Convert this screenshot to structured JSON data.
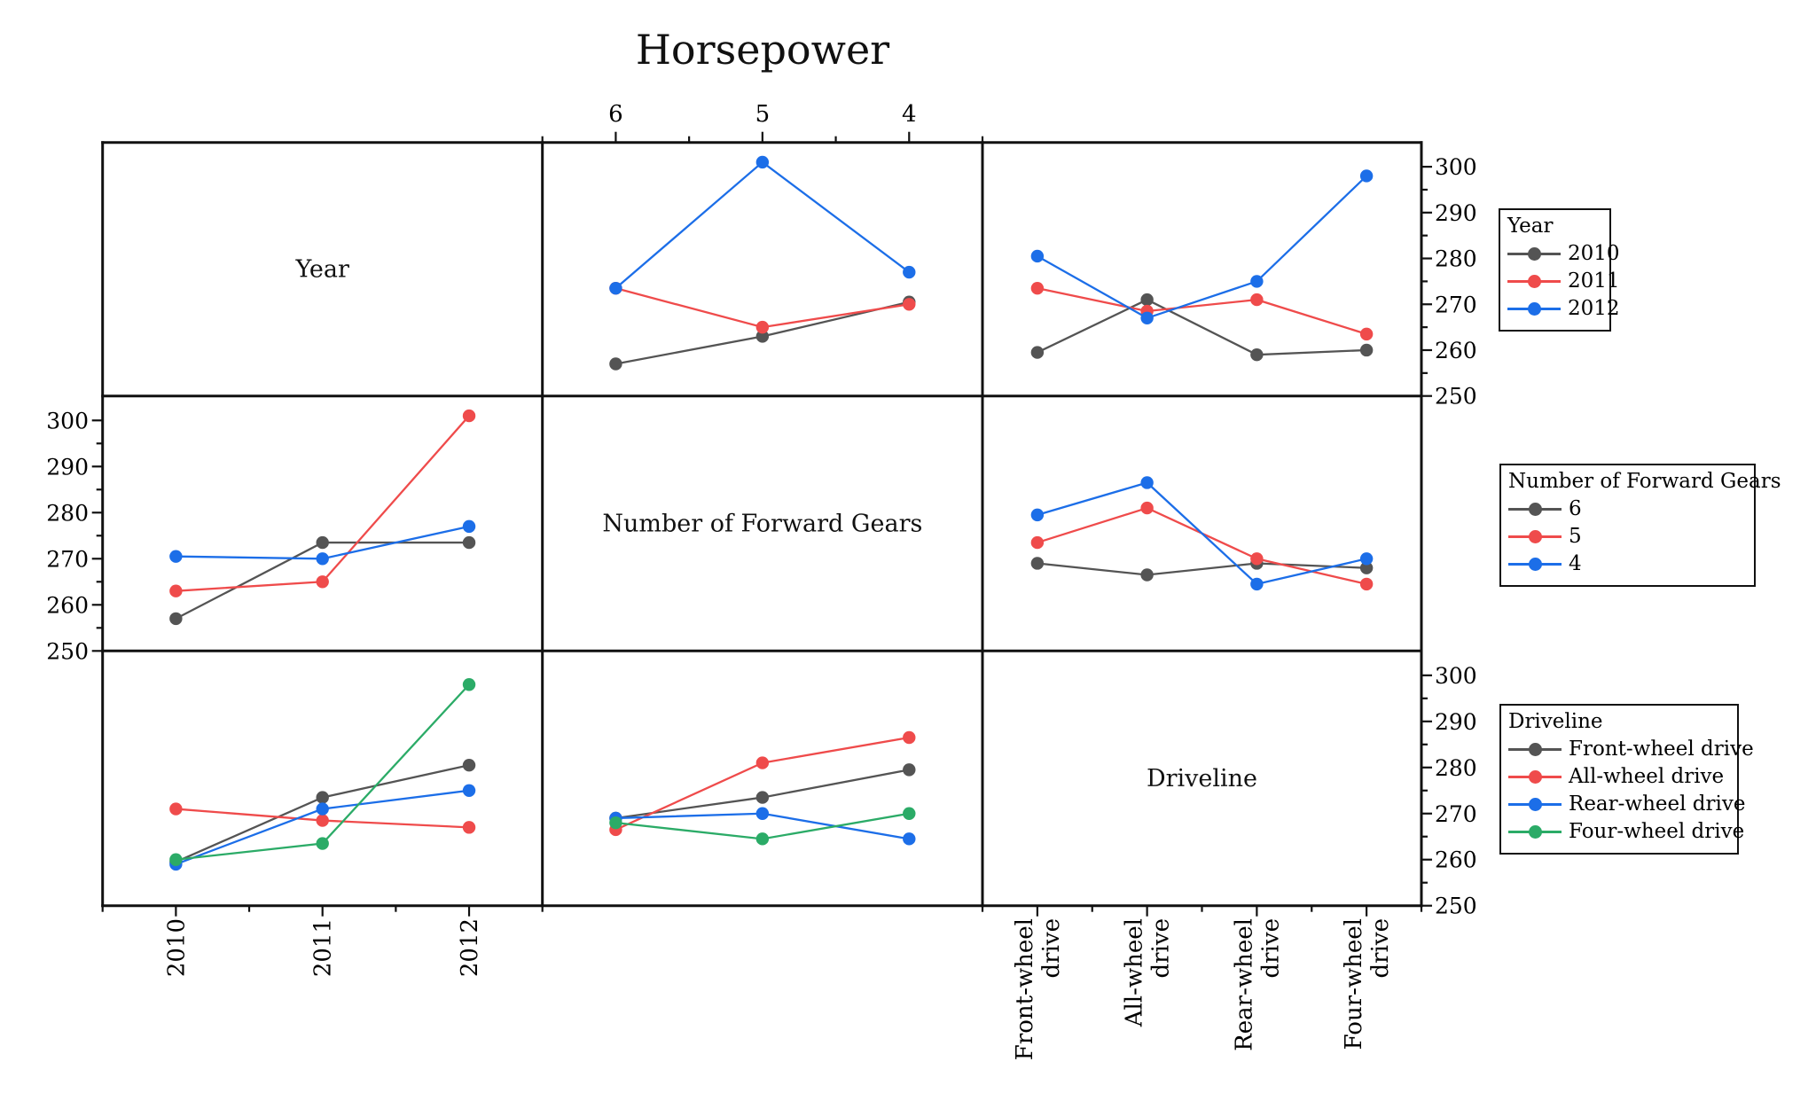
{
  "title": "Horsepower",
  "palette": {
    "gray": "#545454",
    "red": "#EF4B4B",
    "blue": "#1C6EE8",
    "green": "#2BAB67",
    "axis": "#111111"
  },
  "chart_data": {
    "type": "line",
    "title": "Horsepower",
    "layout_hint": "3x3 scatterplot-matrix of interaction line plots; diagonal cells show factor names; value axis 250-300 (ticks every 10, minor every 5); legends at right",
    "value_axis": {
      "major_ticks": [
        300,
        290,
        280,
        270,
        260,
        250
      ],
      "minor_ticks": [
        295,
        285,
        275,
        265,
        255
      ],
      "range": [
        250,
        305.3
      ]
    },
    "factors": {
      "year": {
        "label": "Year",
        "categories": [
          "2010",
          "2011",
          "2012"
        ]
      },
      "gears": {
        "label": "Number of Forward Gears",
        "categories": [
          "6",
          "5",
          "4"
        ]
      },
      "driveline": {
        "label": "Driveline",
        "categories": [
          "Front-wheel drive",
          "All-wheel drive",
          "Rear-wheel drive",
          "Four-wheel drive"
        ],
        "categories_two_line": [
          [
            "Front-wheel",
            "drive"
          ],
          [
            "All-wheel",
            "drive"
          ],
          [
            "Rear-wheel",
            "drive"
          ],
          [
            "Four-wheel",
            "drive"
          ]
        ]
      }
    },
    "panels": [
      {
        "row": 0,
        "col": 0,
        "type": "label",
        "text": "Year"
      },
      {
        "row": 0,
        "col": 1,
        "type": "plot",
        "x_factor": "gears",
        "series": [
          {
            "name": "2010",
            "color": "#545454",
            "values": [
              257,
              263,
              270.5
            ]
          },
          {
            "name": "2011",
            "color": "#EF4B4B",
            "values": [
              273.5,
              265,
              270
            ]
          },
          {
            "name": "2012",
            "color": "#1C6EE8",
            "values": [
              273.5,
              301,
              277
            ]
          }
        ]
      },
      {
        "row": 0,
        "col": 2,
        "type": "plot",
        "x_factor": "driveline",
        "series": [
          {
            "name": "2010",
            "color": "#545454",
            "values": [
              259.5,
              271,
              259,
              260
            ]
          },
          {
            "name": "2011",
            "color": "#EF4B4B",
            "values": [
              273.5,
              268.5,
              271,
              263.5
            ]
          },
          {
            "name": "2012",
            "color": "#1C6EE8",
            "values": [
              280.5,
              267,
              275,
              298
            ]
          }
        ]
      },
      {
        "row": 1,
        "col": 0,
        "type": "plot",
        "x_factor": "year",
        "series": [
          {
            "name": "6",
            "color": "#545454",
            "values": [
              257,
              273.5,
              273.5
            ]
          },
          {
            "name": "5",
            "color": "#EF4B4B",
            "values": [
              263,
              265,
              301
            ]
          },
          {
            "name": "4",
            "color": "#1C6EE8",
            "values": [
              270.5,
              270,
              277
            ]
          }
        ]
      },
      {
        "row": 1,
        "col": 1,
        "type": "label",
        "text": "Number of Forward Gears"
      },
      {
        "row": 1,
        "col": 2,
        "type": "plot",
        "x_factor": "driveline",
        "series": [
          {
            "name": "6",
            "color": "#545454",
            "values": [
              269,
              266.5,
              269,
              268
            ]
          },
          {
            "name": "5",
            "color": "#EF4B4B",
            "values": [
              273.5,
              281,
              270,
              264.5
            ]
          },
          {
            "name": "4",
            "color": "#1C6EE8",
            "values": [
              279.5,
              286.5,
              264.5,
              270
            ]
          }
        ]
      },
      {
        "row": 2,
        "col": 0,
        "type": "plot",
        "x_factor": "year",
        "series": [
          {
            "name": "Front-wheel drive",
            "color": "#545454",
            "values": [
              259.5,
              273.5,
              280.5
            ]
          },
          {
            "name": "All-wheel drive",
            "color": "#EF4B4B",
            "values": [
              271,
              268.5,
              267
            ]
          },
          {
            "name": "Rear-wheel drive",
            "color": "#1C6EE8",
            "values": [
              259,
              271,
              275
            ]
          },
          {
            "name": "Four-wheel drive",
            "color": "#2BAB67",
            "values": [
              260,
              263.5,
              298
            ]
          }
        ]
      },
      {
        "row": 2,
        "col": 1,
        "type": "plot",
        "x_factor": "gears",
        "series": [
          {
            "name": "Front-wheel drive",
            "color": "#545454",
            "values": [
              269,
              273.5,
              279.5
            ]
          },
          {
            "name": "All-wheel drive",
            "color": "#EF4B4B",
            "values": [
              266.5,
              281,
              286.5
            ]
          },
          {
            "name": "Rear-wheel drive",
            "color": "#1C6EE8",
            "values": [
              269,
              270,
              264.5
            ]
          },
          {
            "name": "Four-wheel drive",
            "color": "#2BAB67",
            "values": [
              268,
              264.5,
              270
            ]
          }
        ]
      },
      {
        "row": 2,
        "col": 2,
        "type": "label",
        "text": "Driveline"
      }
    ],
    "axis_label_sets": {
      "top_col1": [
        "6",
        "5",
        "4"
      ],
      "bottom_col0": [
        "2010",
        "2011",
        "2012"
      ],
      "bottom_col2_two_line": [
        [
          "Front-wheel",
          "drive"
        ],
        [
          "All-wheel",
          "drive"
        ],
        [
          "Rear-wheel",
          "drive"
        ],
        [
          "Four-wheel",
          "drive"
        ]
      ],
      "left_row1": [
        "300",
        "290",
        "280",
        "270",
        "260",
        "250"
      ],
      "right_row0": [
        "300",
        "290",
        "280",
        "270",
        "260",
        "250"
      ],
      "right_row2": [
        "300",
        "290",
        "280",
        "270",
        "260",
        "250"
      ]
    },
    "legend_position": "right"
  },
  "legends": [
    {
      "id": "year",
      "title": "Year",
      "entries": [
        {
          "label": "2010",
          "color": "#545454"
        },
        {
          "label": "2011",
          "color": "#EF4B4B"
        },
        {
          "label": "2012",
          "color": "#1C6EE8"
        }
      ]
    },
    {
      "id": "gears",
      "title": "Number of Forward Gears",
      "entries": [
        {
          "label": "6",
          "color": "#545454"
        },
        {
          "label": "5",
          "color": "#EF4B4B"
        },
        {
          "label": "4",
          "color": "#1C6EE8"
        }
      ]
    },
    {
      "id": "driveline",
      "title": "Driveline",
      "entries": [
        {
          "label": "Front-wheel drive",
          "color": "#545454"
        },
        {
          "label": "All-wheel drive",
          "color": "#EF4B4B"
        },
        {
          "label": "Rear-wheel drive",
          "color": "#1C6EE8"
        },
        {
          "label": "Four-wheel drive",
          "color": "#2BAB67"
        }
      ]
    }
  ]
}
